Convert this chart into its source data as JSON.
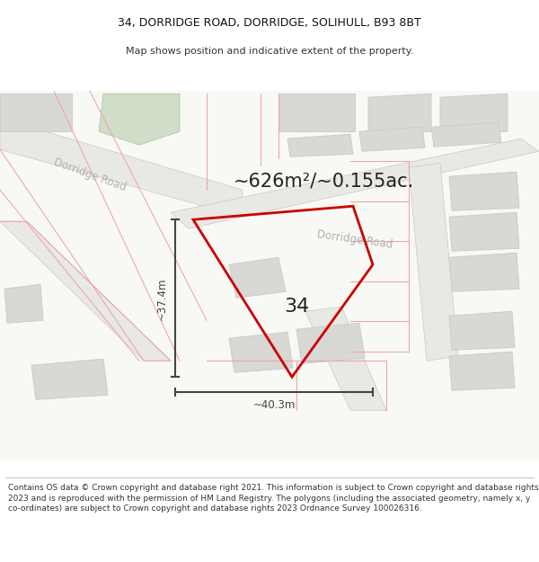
{
  "title_line1": "34, DORRIDGE ROAD, DORRIDGE, SOLIHULL, B93 8BT",
  "title_line2": "Map shows position and indicative extent of the property.",
  "area_text": "~626m²/~0.155ac.",
  "property_number": "34",
  "dim_vertical": "~37.4m",
  "dim_horizontal": "~40.3m",
  "footer_text": "Contains OS data © Crown copyright and database right 2021. This information is subject to Crown copyright and database rights 2023 and is reproduced with the permission of HM Land Registry. The polygons (including the associated geometry, namely x, y co-ordinates) are subject to Crown copyright and database rights 2023 Ordnance Survey 100026316.",
  "bg_color": "#f8f8f5",
  "road_color": "#e8e8e5",
  "road_border_color": "#c8c8c5",
  "building_color": "#d8d8d5",
  "building_border_color": "#cccccc",
  "plot_line_color": "#cc0000",
  "dim_line_color": "#444444",
  "road_label_color": "#b0b0b0",
  "green_area_color": "#d0ddc8",
  "parcel_border_color": "#f0a0a0",
  "title_fontsize": 9,
  "subtitle_fontsize": 8,
  "area_fontsize": 15,
  "number_fontsize": 16,
  "footer_fontsize": 6.5
}
